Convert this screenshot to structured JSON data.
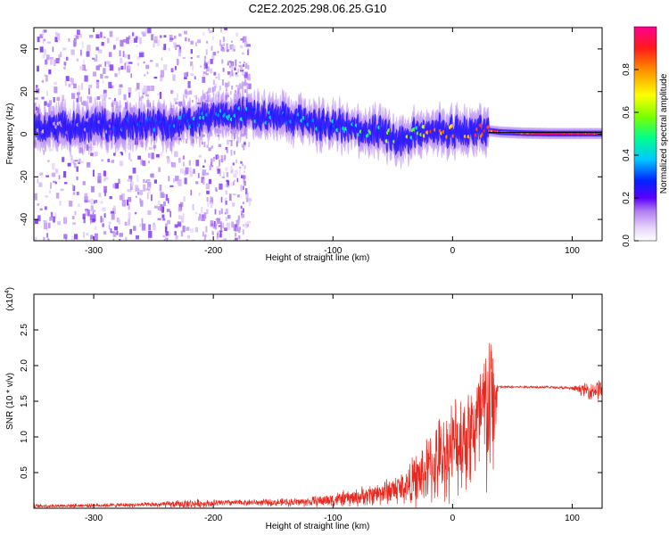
{
  "title": "C2E2.2025.298.06.25.G10",
  "chart_data": [
    {
      "type": "heatmap",
      "name": "spectrogram",
      "xlabel": "Height of straight line (km)",
      "ylabel": "Frequency (Hz)",
      "xlim": [
        -350,
        125
      ],
      "ylim": [
        -50,
        50
      ],
      "xticks": [
        -300,
        -200,
        -100,
        0,
        100
      ],
      "yticks": [
        -40,
        -20,
        0,
        20,
        40
      ],
      "colorbar": {
        "label": "Normalized spectral amplitude",
        "range": [
          0,
          1
        ],
        "ticks": [
          "0.0",
          "0.2",
          "0.4",
          "0.6",
          "0.8"
        ],
        "tick_values": [
          0.0,
          0.2,
          0.4,
          0.6,
          0.8
        ],
        "colors": [
          "#ffffff",
          "#c9b0f0",
          "#8a2be2",
          "#2d00ff",
          "#00b7ff",
          "#00ff99",
          "#7fff00",
          "#ffff00",
          "#ff8c00",
          "#ff1a1a",
          "#ff0090"
        ]
      },
      "ridge": {
        "x": [
          -350,
          -300,
          -260,
          -220,
          -200,
          -180,
          -160,
          -140,
          -120,
          -100,
          -80,
          -60,
          -45,
          -30,
          -20,
          -10,
          0,
          10,
          25,
          40,
          60,
          80,
          100,
          125
        ],
        "freq": [
          3,
          4,
          4,
          6,
          8,
          10,
          8,
          7,
          6,
          4,
          3,
          1,
          -3,
          0,
          2,
          2,
          1,
          1,
          2,
          1,
          0.5,
          0.3,
          0.3,
          0.3
        ],
        "amplitude": [
          0.15,
          0.2,
          0.25,
          0.35,
          0.4,
          0.4,
          0.35,
          0.35,
          0.35,
          0.35,
          0.45,
          0.55,
          0.6,
          0.5,
          0.85,
          0.75,
          0.75,
          0.8,
          0.85,
          0.9,
          0.9,
          1.0,
          0.95,
          0.9
        ]
      }
    },
    {
      "type": "line",
      "name": "snr",
      "xlabel": "Height of straight line (km)",
      "ylabel": "SNR (10 * v/v)",
      "yscale_label": "(x10",
      "yscale_exp": "4",
      "xlim": [
        -350,
        125
      ],
      "ylim": [
        0,
        3.0
      ],
      "xticks": [
        -300,
        -200,
        -100,
        0,
        100
      ],
      "yticks": [
        0.5,
        1.0,
        1.5,
        2.0,
        2.5
      ],
      "ytick_labels": [
        "0.5",
        "1.0",
        "1.5",
        "2.0",
        "2.5"
      ],
      "color": "#e8281e",
      "series": {
        "x": [
          -350,
          -300,
          -250,
          -220,
          -200,
          -180,
          -150,
          -120,
          -100,
          -80,
          -60,
          -40,
          -30,
          -20,
          -10,
          0,
          10,
          20,
          25,
          30,
          35,
          38,
          40,
          60,
          80,
          100,
          115,
          125
        ],
        "base": [
          0.03,
          0.04,
          0.05,
          0.06,
          0.07,
          0.08,
          0.08,
          0.09,
          0.12,
          0.15,
          0.22,
          0.3,
          0.4,
          0.55,
          0.7,
          0.85,
          1.0,
          1.15,
          1.25,
          1.35,
          1.45,
          1.7,
          1.7,
          1.7,
          1.7,
          1.68,
          1.65,
          1.68
        ],
        "spread": [
          0.03,
          0.03,
          0.04,
          0.08,
          0.06,
          0.05,
          0.06,
          0.08,
          0.12,
          0.15,
          0.2,
          0.3,
          0.45,
          0.6,
          0.7,
          0.8,
          0.9,
          1.0,
          1.3,
          1.5,
          1.1,
          0.02,
          0.02,
          0.02,
          0.02,
          0.03,
          0.15,
          0.2
        ]
      }
    }
  ]
}
